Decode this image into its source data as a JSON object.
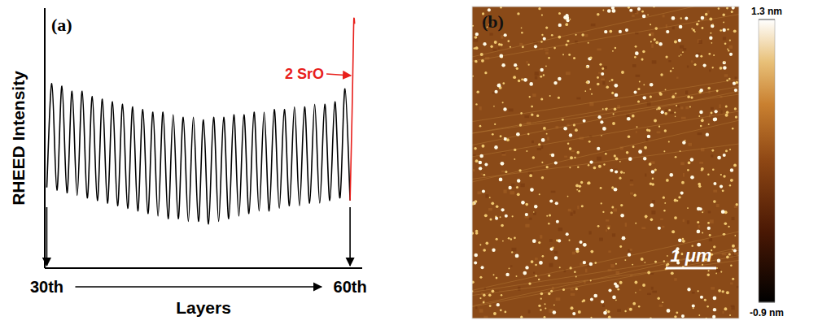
{
  "chart_data": [
    {
      "type": "line",
      "panel_label": "(a)",
      "xlabel": "Layers",
      "ylabel": "RHEED Intensity",
      "xlim": [
        29.8,
        61.2
      ],
      "ylim": [
        0,
        100
      ],
      "xticks": [
        {
          "value": 30,
          "label": "30th"
        },
        {
          "value": 60,
          "label": "60th"
        }
      ],
      "tick_labels": "x",
      "series": [
        {
          "color": "#000000",
          "x": [
            30,
            30.5,
            31,
            31.5,
            32,
            32.5,
            33,
            33.5,
            34,
            34.5,
            35,
            35.5,
            36,
            36.5,
            37,
            37.5,
            38,
            38.5,
            39,
            39.5,
            40,
            40.5,
            41,
            41.5,
            42,
            42.5,
            43,
            43.5,
            44,
            44.5,
            45,
            45.5,
            46,
            46.5,
            47,
            47.5,
            48,
            48.5,
            49,
            49.5,
            50,
            50.5,
            51,
            51.5,
            52,
            52.5,
            53,
            53.5,
            54,
            54.5,
            55,
            55.5,
            56,
            56.5,
            57,
            57.5,
            58,
            58.5,
            59,
            59.5,
            60
          ],
          "values": [
            31,
            71,
            30,
            70,
            29,
            68,
            28,
            68,
            27,
            66,
            26,
            65,
            25,
            64,
            24,
            63,
            23,
            62,
            22,
            61,
            21,
            60,
            20,
            60,
            19,
            59,
            19,
            58,
            18,
            58,
            18,
            57,
            17,
            58,
            18,
            58,
            19,
            59,
            20,
            59,
            21,
            60,
            22,
            60,
            22,
            61,
            23,
            61,
            24,
            62,
            24,
            62,
            25,
            63,
            25,
            63,
            26,
            64,
            27,
            69,
            26
          ]
        },
        {
          "color": "#e8201c",
          "x": [
            60,
            60.2,
            60.35,
            60.4,
            60.45
          ],
          "values": [
            26,
            60,
            92,
            96,
            94
          ]
        }
      ],
      "annotations": [
        {
          "text": "2 SrO",
          "color": "#e8201c"
        }
      ]
    },
    {
      "type": "image",
      "panel_label": "(b)",
      "scale_bar_label": "1 μm",
      "colorbar_range": [
        -0.9,
        1.3
      ],
      "colorbar_ticks": [
        {
          "value": 1.3,
          "label": "1.3 nm"
        },
        {
          "value": -0.9,
          "label": "-0.9 nm"
        }
      ]
    }
  ]
}
